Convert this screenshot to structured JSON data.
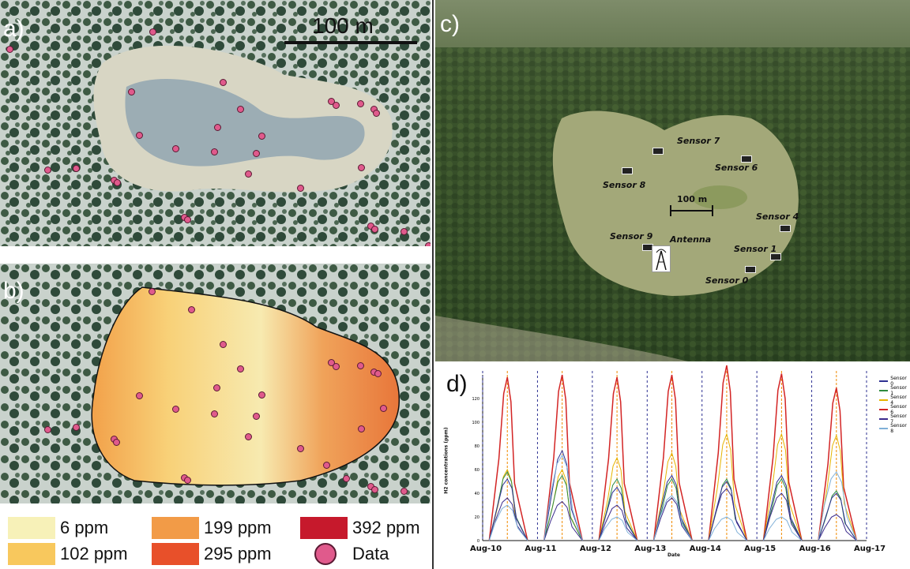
{
  "panels": {
    "a": {
      "label": "a)",
      "scale_bar": "100 m"
    },
    "b": {
      "label": "b)"
    },
    "c": {
      "label": "c)",
      "scale_bar": "100 m",
      "sensors": [
        "Sensor 7",
        "Sensor 6",
        "Sensor 8",
        "Sensor 4",
        "Sensor 9",
        "Antenna",
        "Sensor 1",
        "Sensor 0"
      ]
    },
    "d": {
      "label": "d)"
    }
  },
  "legend": {
    "items": [
      {
        "label": "6 ppm",
        "color": "#f7f1b8"
      },
      {
        "label": "199 ppm",
        "color": "#f29b47"
      },
      {
        "label": "392 ppm",
        "color": "#c6192c"
      },
      {
        "label": "102 ppm",
        "color": "#f8c85d"
      },
      {
        "label": "295 ppm",
        "color": "#e8502a"
      },
      {
        "label": "Data",
        "color": "#e05a8c"
      }
    ]
  },
  "chart_data": {
    "type": "line",
    "title": "",
    "ylabel": "H2 concentrations (ppm)",
    "xlabel": "Date",
    "ylim": [
      0,
      140
    ],
    "yticks": [
      0,
      20,
      40,
      60,
      80,
      100,
      120
    ],
    "xticks": [
      "Aug-10",
      "Aug-11",
      "Aug-12",
      "Aug-13",
      "Aug-14",
      "Aug-15",
      "Aug-16",
      "Aug-17"
    ],
    "series": [
      {
        "name": "Sensor 0",
        "color": "#2e3192"
      },
      {
        "name": "Sensor 1",
        "color": "#2e8b3e"
      },
      {
        "name": "Sensor 4",
        "color": "#e6b400"
      },
      {
        "name": "Sensor 6",
        "color": "#d32424"
      },
      {
        "name": "Sensor 7",
        "color": "#3b2a8c"
      },
      {
        "name": "Sensor 8",
        "color": "#7fb0d8"
      }
    ],
    "daily_peaks": [
      {
        "day": 0,
        "s6": 138,
        "s4": 60,
        "s1": 58,
        "s0": 52,
        "s7": 36,
        "s8": 30
      },
      {
        "day": 1,
        "s6": 140,
        "s4": 60,
        "s1": 55,
        "s0": 76,
        "s7": 33,
        "s8": 72
      },
      {
        "day": 2,
        "s6": 138,
        "s4": 70,
        "s1": 52,
        "s0": 45,
        "s7": 30,
        "s8": 20
      },
      {
        "day": 3,
        "s6": 140,
        "s4": 74,
        "s1": 52,
        "s0": 55,
        "s7": 36,
        "s8": 38
      },
      {
        "day": 4,
        "s6": 148,
        "s4": 90,
        "s1": 52,
        "s0": 50,
        "s7": 44,
        "s8": 20
      },
      {
        "day": 5,
        "s6": 141,
        "s4": 90,
        "s1": 52,
        "s0": 55,
        "s7": 40,
        "s8": 20
      },
      {
        "day": 6,
        "s6": 129,
        "s4": 89,
        "s1": 42,
        "s0": 40,
        "s7": 22,
        "s8": 58
      }
    ]
  }
}
